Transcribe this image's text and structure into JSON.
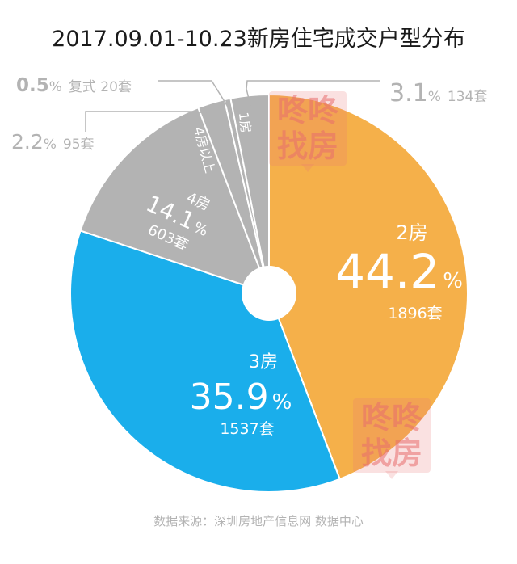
{
  "title": "2017.09.01-10.23新房住宅成交户型分布",
  "source": "数据来源：深圳房地产信息网 数据中心",
  "watermark": {
    "line1": "咚咚",
    "line2": "找房"
  },
  "chart_data": {
    "type": "pie",
    "donut_hole": true,
    "start_angle_deg": 0,
    "direction": "clockwise",
    "slices": [
      {
        "label": "2房",
        "percent": 44.2,
        "count": 1896,
        "count_unit": "套",
        "color": "#f5b04a"
      },
      {
        "label": "3房",
        "percent": 35.9,
        "count": 1537,
        "count_unit": "套",
        "color": "#1aaeeb"
      },
      {
        "label": "4房",
        "percent": 14.1,
        "count": 603,
        "count_unit": "套",
        "color": "#b3b3b3"
      },
      {
        "label": "4房以上",
        "percent": 2.2,
        "count": 95,
        "count_unit": "套",
        "color": "#b3b3b3"
      },
      {
        "label": "复式",
        "percent": 0.5,
        "count": 20,
        "count_unit": "套",
        "color": "#b3b3b3"
      },
      {
        "label": "1房",
        "percent": 3.1,
        "count": 134,
        "count_unit": "套",
        "color": "#b3b3b3"
      }
    ]
  }
}
